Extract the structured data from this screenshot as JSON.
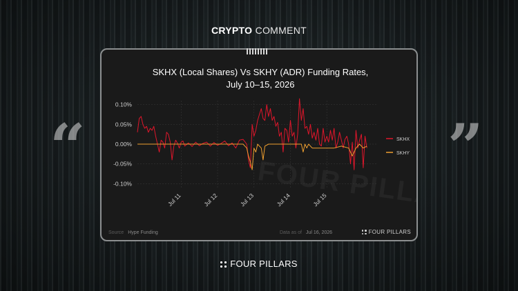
{
  "header": {
    "bold": "CRYPTO",
    "light": "COMMENT"
  },
  "brand": "FOUR PILLARS",
  "watermark": "FOUR PILLARS",
  "quotes": {
    "open": "“",
    "close": "”"
  },
  "card": {
    "source_label": "Source",
    "source_value": "Hype Funding",
    "date_label": "Data as of",
    "date_value": "Jul 16, 2026",
    "brand": "FOUR PILLARS"
  },
  "colors": {
    "skhx": "#e0162b",
    "skhy": "#f0a030",
    "grid": "#3a3a3a",
    "text": "#d0d0d0"
  },
  "chart_data": {
    "type": "line",
    "title_line1": "SKHX (Local Shares) Vs SKHY (ADR) Funding Rates,",
    "title_line2": "July 10–15, 2026",
    "xlabel": "",
    "ylabel": "",
    "ylim": [
      -0.11,
      0.11
    ],
    "yticks": [
      0.1,
      0.05,
      0.0,
      -0.05,
      -0.1
    ],
    "ytick_labels": [
      "0.10%",
      "0.05%",
      "0.00%",
      "-0.05%",
      "-0.10%"
    ],
    "xlim": [
      0,
      6.6
    ],
    "xticks": [
      1.2,
      2.2,
      3.2,
      4.2,
      5.2
    ],
    "xtick_labels": [
      "Jul 11",
      "Jul 12",
      "Jul 13",
      "Jul 14",
      "Jul 15"
    ],
    "legend_position": "right",
    "series": [
      {
        "name": "SKHX",
        "x": [
          0,
          0.05,
          0.1,
          0.15,
          0.2,
          0.25,
          0.3,
          0.35,
          0.4,
          0.45,
          0.5,
          0.55,
          0.6,
          0.65,
          0.7,
          0.75,
          0.8,
          0.85,
          0.9,
          0.95,
          1.0,
          1.05,
          1.1,
          1.15,
          1.2,
          1.25,
          1.3,
          1.4,
          1.5,
          1.6,
          1.7,
          1.8,
          1.9,
          2.0,
          2.1,
          2.2,
          2.3,
          2.4,
          2.5,
          2.6,
          2.7,
          2.8,
          2.9,
          3.0,
          3.05,
          3.1,
          3.15,
          3.2,
          3.25,
          3.3,
          3.35,
          3.4,
          3.45,
          3.5,
          3.55,
          3.6,
          3.65,
          3.7,
          3.75,
          3.8,
          3.85,
          3.9,
          3.95,
          4.0,
          4.05,
          4.1,
          4.15,
          4.2,
          4.25,
          4.3,
          4.35,
          4.4,
          4.45,
          4.5,
          4.55,
          4.6,
          4.65,
          4.7,
          4.75,
          4.8,
          4.85,
          4.9,
          4.95,
          5.0,
          5.05,
          5.1,
          5.15,
          5.2,
          5.25,
          5.3,
          5.35,
          5.4,
          5.45,
          5.5,
          5.55,
          5.6,
          5.65,
          5.7,
          5.75,
          5.8,
          5.85,
          5.9,
          5.95,
          6.0,
          6.05,
          6.1,
          6.15,
          6.2,
          6.25,
          6.3
        ],
        "values": [
          0.03,
          0.065,
          0.07,
          0.05,
          0.04,
          0.045,
          0.03,
          0.04,
          0.035,
          0.045,
          0.02,
          0.0,
          -0.02,
          0.01,
          0.005,
          -0.01,
          0.03,
          0.025,
          0.005,
          -0.04,
          -0.005,
          0.01,
          0.002,
          -0.01,
          0.005,
          0.008,
          -0.005,
          0.003,
          -0.006,
          0.005,
          -0.004,
          0.002,
          0.005,
          -0.005,
          0.004,
          -0.003,
          0.002,
          0.008,
          -0.004,
          0.003,
          -0.01,
          0.01,
          0.012,
          0.0,
          -0.04,
          -0.06,
          0.05,
          0.02,
          0.035,
          0.06,
          0.075,
          0.09,
          0.065,
          0.06,
          0.1,
          0.07,
          0.09,
          0.06,
          0.07,
          0.045,
          0.055,
          0.02,
          0.03,
          -0.02,
          0.04,
          0.035,
          0.005,
          0.06,
          0.02,
          0.03,
          -0.01,
          0.025,
          0.115,
          0.06,
          0.09,
          0.04,
          0.045,
          0.025,
          0.05,
          0.015,
          0.03,
          0.01,
          0.04,
          0.0,
          -0.005,
          0.04,
          0.005,
          0.02,
          0.005,
          0.035,
          0.01,
          0.04,
          -0.01,
          0.005,
          0.03,
          0.01,
          -0.01,
          0.012,
          0.02,
          0.0,
          -0.05,
          0.005,
          -0.065,
          0.035,
          -0.01,
          0.01,
          0.025,
          -0.06,
          0.02,
          -0.01
        ]
      },
      {
        "name": "SKHY",
        "x": [
          0,
          0.3,
          0.6,
          0.9,
          1.2,
          1.5,
          1.8,
          2.1,
          2.4,
          2.7,
          2.9,
          3.0,
          3.05,
          3.1,
          3.15,
          3.2,
          3.25,
          3.3,
          3.35,
          3.4,
          3.45,
          3.5,
          3.6,
          3.7,
          3.8,
          3.9,
          4.0,
          4.1,
          4.2,
          4.3,
          4.4,
          4.5,
          4.55,
          4.6,
          4.65,
          4.7,
          4.8,
          4.9,
          5.0,
          5.2,
          5.4,
          5.6,
          5.8,
          5.9,
          5.95,
          6.0,
          6.1,
          6.2,
          6.3
        ],
        "values": [
          0.0,
          0.0,
          0.0,
          0.0,
          0.0,
          0.0,
          0.0,
          0.0,
          0.0,
          0.0,
          0.0,
          -0.01,
          -0.03,
          -0.045,
          -0.065,
          -0.01,
          -0.02,
          0.0,
          -0.005,
          -0.01,
          -0.04,
          -0.005,
          0.0,
          0.0,
          0.0,
          0.0,
          0.0,
          0.0,
          0.0,
          0.0,
          0.0,
          0.0,
          -0.02,
          0.0,
          -0.01,
          0.0,
          -0.01,
          -0.01,
          -0.01,
          -0.01,
          -0.01,
          -0.005,
          -0.01,
          -0.03,
          -0.02,
          -0.01,
          0.0,
          -0.01,
          -0.005
        ]
      }
    ]
  }
}
